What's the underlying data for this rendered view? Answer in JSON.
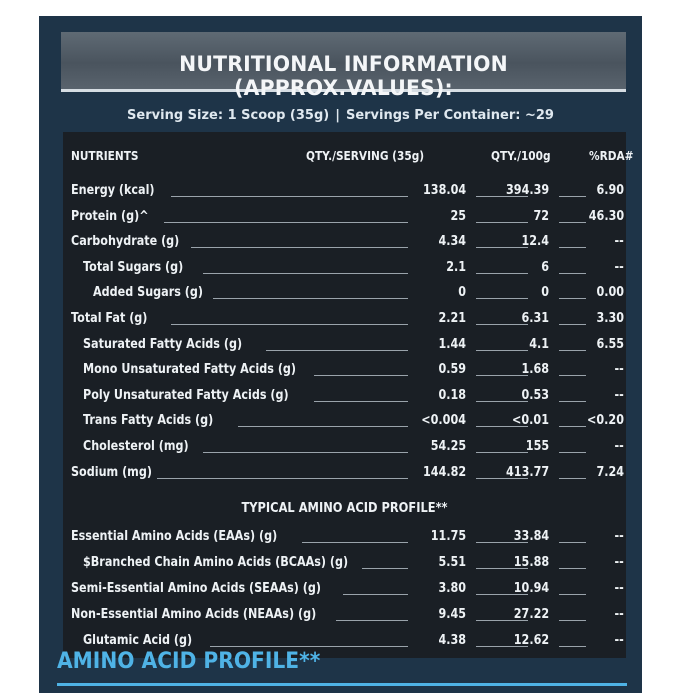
{
  "header": {
    "title": "NUTRITIONAL INFORMATION (APPROX.VALUES):"
  },
  "serving": {
    "size": "Serving Size: 1 Scoop (35g)",
    "separator": "|",
    "servings": "Servings Per Container: ~29"
  },
  "columns": {
    "nutrients": "NUTRIENTS",
    "per_serving": "QTY./SERVING (35g)",
    "per_100g": "QTY./100g",
    "rda": "%RDA#"
  },
  "nutrients": [
    {
      "name": "Energy (kcal)",
      "serving": "138.04",
      "per100": "394.39",
      "rda": "6.90",
      "indent": 0
    },
    {
      "name": "Protein (g)^",
      "serving": "25",
      "per100": "72",
      "rda": "46.30",
      "indent": 0
    },
    {
      "name": "Carbohydrate (g)",
      "serving": "4.34",
      "per100": "12.4",
      "rda": "--",
      "indent": 0
    },
    {
      "name": "Total Sugars (g)",
      "serving": "2.1",
      "per100": "6",
      "rda": "--",
      "indent": 1
    },
    {
      "name": "Added Sugars (g)",
      "serving": "0",
      "per100": "0",
      "rda": "0.00",
      "indent": 2
    },
    {
      "name": "Total Fat (g)",
      "serving": "2.21",
      "per100": "6.31",
      "rda": "3.30",
      "indent": 0
    },
    {
      "name": "Saturated Fatty Acids (g)",
      "serving": "1.44",
      "per100": "4.1",
      "rda": "6.55",
      "indent": 1
    },
    {
      "name": "Mono Unsaturated Fatty Acids (g)",
      "serving": "0.59",
      "per100": "1.68",
      "rda": "--",
      "indent": 1
    },
    {
      "name": "Poly Unsaturated Fatty Acids (g)",
      "serving": "0.18",
      "per100": "0.53",
      "rda": "--",
      "indent": 1
    },
    {
      "name": "Trans Fatty Acids (g)",
      "serving": "<0.004",
      "per100": "<0.01",
      "rda": "<0.20",
      "indent": 1
    },
    {
      "name": "Cholesterol (mg)",
      "serving": "54.25",
      "per100": "155",
      "rda": "--",
      "indent": 1
    },
    {
      "name": "Sodium (mg)",
      "serving": "144.82",
      "per100": "413.77",
      "rda": "7.24",
      "indent": 0
    }
  ],
  "amino_section_title": "TYPICAL AMINO ACID PROFILE**",
  "amino": [
    {
      "name": "Essential Amino Acids (EAAs) (g)",
      "serving": "11.75",
      "per100": "33.84",
      "rda": "--",
      "indent": 0
    },
    {
      "name": "$Branched Chain Amino Acids (BCAAs) (g)",
      "serving": "5.51",
      "per100": "15.88",
      "rda": "--",
      "indent": 1
    },
    {
      "name": "Semi-Essential Amino Acids (SEAAs) (g)",
      "serving": "3.80",
      "per100": "10.94",
      "rda": "--",
      "indent": 0
    },
    {
      "name": "Non-Essential Amino Acids (NEAAs) (g)",
      "serving": "9.45",
      "per100": "27.22",
      "rda": "--",
      "indent": 0
    },
    {
      "name": "Glutamic Acid (g)",
      "serving": "4.38",
      "per100": "12.62",
      "rda": "--",
      "indent": 1
    }
  ],
  "bottom_title": "AMINO ACID PROFILE**"
}
